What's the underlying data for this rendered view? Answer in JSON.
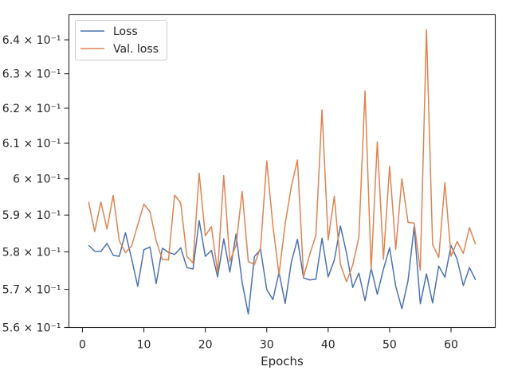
{
  "chart_data": {
    "type": "line",
    "xlabel": "Epochs",
    "ylabel": "",
    "xlim": [
      -2.2,
      67.2
    ],
    "ylim": [
      0.56,
      0.6475
    ],
    "y_scale": "log",
    "xticks": [
      0,
      10,
      20,
      30,
      40,
      50,
      60
    ],
    "yticks": [
      {
        "value": 0.56,
        "label": "5.6 × 10⁻¹"
      },
      {
        "value": 0.57,
        "label": "5.7 × 10⁻¹"
      },
      {
        "value": 0.58,
        "label": "5.8 × 10⁻¹"
      },
      {
        "value": 0.59,
        "label": "5.9 × 10⁻¹"
      },
      {
        "value": 0.6,
        "label": "6 × 10⁻¹"
      },
      {
        "value": 0.61,
        "label": "6.1 × 10⁻¹"
      },
      {
        "value": 0.62,
        "label": "6.2 × 10⁻¹"
      },
      {
        "value": 0.63,
        "label": "6.3 × 10⁻¹"
      },
      {
        "value": 0.64,
        "label": "6.4 × 10⁻¹"
      }
    ],
    "grid": false,
    "legend_position": "upper-left",
    "x": [
      1,
      2,
      3,
      4,
      5,
      6,
      7,
      8,
      9,
      10,
      11,
      12,
      13,
      14,
      15,
      16,
      17,
      18,
      19,
      20,
      21,
      22,
      23,
      24,
      25,
      26,
      27,
      28,
      29,
      30,
      31,
      32,
      33,
      34,
      35,
      36,
      37,
      38,
      39,
      40,
      41,
      42,
      43,
      44,
      45,
      46,
      47,
      48,
      49,
      50,
      51,
      52,
      53,
      54,
      55,
      56,
      57,
      58,
      59,
      60,
      61,
      62,
      63,
      64
    ],
    "series": [
      {
        "name": "Loss",
        "color": "#4c72b0",
        "values": [
          0.5818,
          0.5802,
          0.5801,
          0.5823,
          0.5791,
          0.5788,
          0.5852,
          0.5782,
          0.5708,
          0.5806,
          0.5813,
          0.5715,
          0.581,
          0.5799,
          0.5793,
          0.5811,
          0.5758,
          0.5754,
          0.5885,
          0.5788,
          0.5804,
          0.5733,
          0.5835,
          0.5746,
          0.5848,
          0.5718,
          0.5635,
          0.5788,
          0.5806,
          0.57,
          0.5673,
          0.5745,
          0.5663,
          0.5772,
          0.5834,
          0.573,
          0.5725,
          0.5727,
          0.5837,
          0.5733,
          0.5778,
          0.587,
          0.5796,
          0.5705,
          0.5743,
          0.567,
          0.5756,
          0.5687,
          0.5754,
          0.5811,
          0.5708,
          0.5649,
          0.5723,
          0.5868,
          0.5662,
          0.5741,
          0.5664,
          0.5762,
          0.5732,
          0.5817,
          0.578,
          0.571,
          0.5758,
          0.5725
        ]
      },
      {
        "name": "Val. loss",
        "color": "#dd8452",
        "values": [
          0.5936,
          0.5855,
          0.5936,
          0.5862,
          0.5954,
          0.583,
          0.5798,
          0.5816,
          0.5873,
          0.593,
          0.5909,
          0.583,
          0.578,
          0.5778,
          0.5955,
          0.5933,
          0.5788,
          0.577,
          0.6016,
          0.5844,
          0.5868,
          0.5745,
          0.6009,
          0.5774,
          0.5818,
          0.5965,
          0.5774,
          0.5766,
          0.5812,
          0.605,
          0.5871,
          0.574,
          0.5876,
          0.5978,
          0.6053,
          0.5733,
          0.5793,
          0.5845,
          0.6196,
          0.5832,
          0.5952,
          0.5766,
          0.572,
          0.5765,
          0.584,
          0.625,
          0.5752,
          0.6104,
          0.578,
          0.6035,
          0.5807,
          0.6,
          0.588,
          0.5878,
          0.5751,
          0.643,
          0.582,
          0.5785,
          0.599,
          0.5788,
          0.5828,
          0.5796,
          0.5866,
          0.582
        ]
      }
    ]
  }
}
